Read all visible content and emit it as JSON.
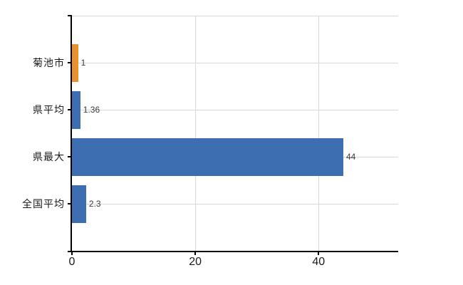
{
  "chart": {
    "background": "#ffffff",
    "axis_color": "#000000",
    "grid_color": "#d8d8d8",
    "category_label_color": "#1a1a1a",
    "tick_label_color": "#1a1a1a",
    "value_label_color": "#3a3a3a"
  },
  "chart_data": {
    "type": "bar",
    "orientation": "horizontal",
    "title": "",
    "categories": [
      "菊池市",
      "県平均",
      "県最大",
      "全国平均"
    ],
    "values": [
      1,
      1.36,
      44,
      2.3
    ],
    "value_labels": [
      "1",
      "1.36",
      "44",
      "2.3"
    ],
    "series_colors": [
      "#ea9030",
      "#3e6eb2",
      "#3e6eb2",
      "#3e6eb2"
    ],
    "highlight_color": "#ea9030",
    "default_color": "#3e6eb2",
    "x_ticks": [
      "0",
      "20",
      "40"
    ],
    "x_tick_values": [
      0,
      20,
      40
    ],
    "xlim": [
      0,
      52.9
    ],
    "grid": true,
    "legend": false
  }
}
